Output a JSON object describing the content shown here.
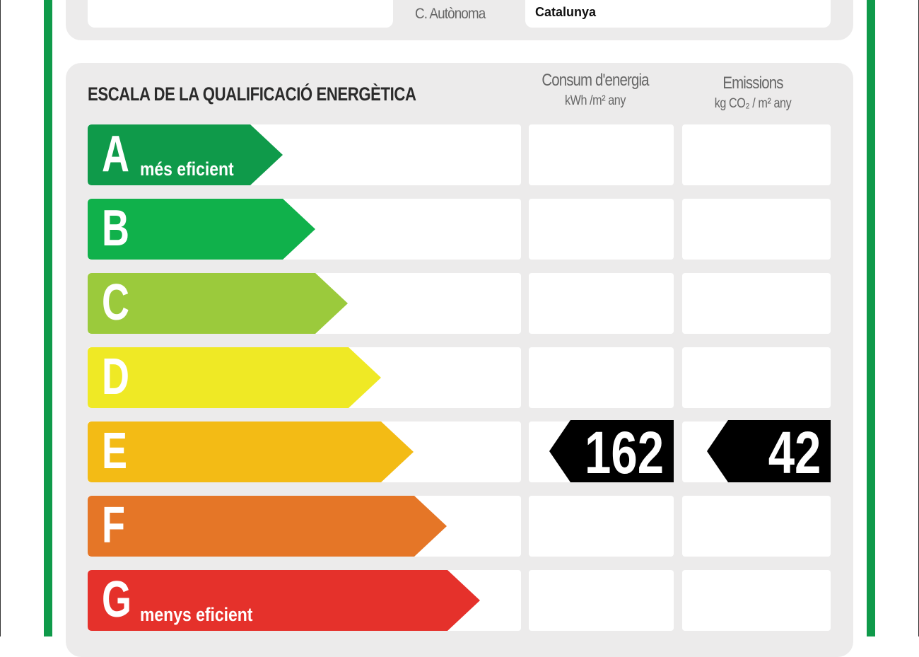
{
  "header": {
    "region_label": "C. Autònoma",
    "region_value": "Catalunya"
  },
  "scale": {
    "title": "ESCALA DE LA QUALIFICACIÓ ENERGÈTICA",
    "columns": [
      {
        "heading": "Consum d'energia",
        "unit_html": "kWh /m² any"
      },
      {
        "heading": "Emissions",
        "unit_html": "kg CO₂ / m² any"
      }
    ],
    "classes": [
      {
        "letter": "A",
        "caption": "més eficient",
        "color": "#0f9a4a"
      },
      {
        "letter": "B",
        "caption": "",
        "color": "#10b14b"
      },
      {
        "letter": "C",
        "caption": "",
        "color": "#9bca3c"
      },
      {
        "letter": "D",
        "caption": "",
        "color": "#efe925"
      },
      {
        "letter": "E",
        "caption": "",
        "color": "#f3bb15"
      },
      {
        "letter": "F",
        "caption": "",
        "color": "#e57627"
      },
      {
        "letter": "G",
        "caption": "menys eficient",
        "color": "#e5312b"
      }
    ],
    "rating": {
      "class": "E",
      "energy_consumption": "162",
      "emissions": "42"
    }
  },
  "colors": {
    "frame_green": "#0f9a4a",
    "panel_gray": "#ecebeb",
    "badge": "#000000"
  }
}
